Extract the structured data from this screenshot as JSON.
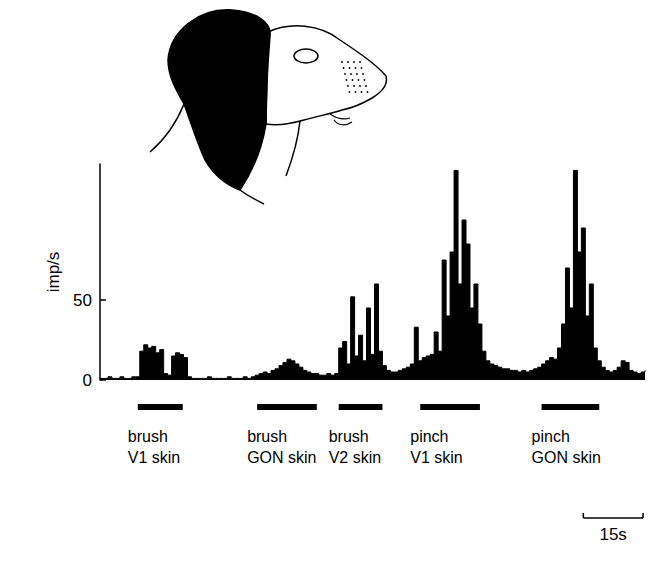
{
  "chart_data": {
    "type": "area",
    "color": "#000000",
    "ylabel": "imp/s",
    "x": [
      0,
      1,
      2,
      3,
      4,
      5,
      6,
      7,
      8,
      9,
      10,
      11,
      12,
      13,
      14,
      15,
      16,
      17,
      18,
      19,
      20,
      21,
      22,
      23,
      24,
      25,
      26,
      27,
      28,
      29,
      30,
      31,
      32,
      33,
      34,
      35,
      36,
      37,
      38,
      39,
      40,
      41,
      42,
      43,
      44,
      45,
      46,
      47,
      48,
      49,
      50,
      51,
      52,
      53,
      54,
      55,
      56,
      57,
      58,
      59,
      60,
      61,
      62,
      63,
      64,
      65,
      66,
      67,
      68,
      69,
      70,
      71,
      72,
      73,
      74,
      75,
      76,
      77,
      78,
      79,
      80,
      81,
      82,
      83,
      84,
      85,
      86,
      87,
      88,
      89,
      90,
      91,
      92,
      93,
      94,
      95,
      96,
      97,
      98,
      99,
      100,
      101,
      102,
      103,
      104,
      105,
      106,
      107,
      108,
      109,
      110,
      111,
      112,
      113,
      114,
      115,
      116,
      117,
      118,
      119,
      120,
      121,
      122,
      123,
      124,
      125,
      126,
      127,
      128,
      129,
      130,
      131,
      132,
      133,
      134,
      135,
      136,
      137
    ],
    "values": [
      1,
      1,
      2,
      1,
      1,
      2,
      1,
      1,
      2,
      2,
      18,
      22,
      20,
      21,
      17,
      19,
      4,
      3,
      15,
      17,
      16,
      14,
      2,
      1,
      1,
      1,
      1,
      2,
      1,
      1,
      1,
      1,
      2,
      1,
      1,
      1,
      2,
      1,
      2,
      3,
      4,
      5,
      4,
      6,
      7,
      9,
      11,
      13,
      12,
      10,
      8,
      6,
      5,
      4,
      4,
      3,
      3,
      4,
      3,
      4,
      20,
      24,
      10,
      52,
      15,
      28,
      12,
      45,
      16,
      60,
      18,
      9,
      6,
      5,
      5,
      6,
      7,
      8,
      10,
      33,
      12,
      14,
      15,
      16,
      30,
      18,
      75,
      40,
      80,
      131,
      60,
      100,
      85,
      45,
      60,
      35,
      18,
      12,
      10,
      9,
      8,
      7,
      7,
      6,
      6,
      5,
      6,
      5,
      6,
      7,
      8,
      10,
      12,
      14,
      13,
      20,
      35,
      70,
      45,
      131,
      80,
      95,
      40,
      60,
      20,
      12,
      8,
      6,
      5,
      6,
      8,
      12,
      11,
      6,
      5,
      4,
      5,
      6
    ],
    "xlim": [
      0,
      138
    ],
    "ylim": [
      0,
      135
    ],
    "yticks": [
      0,
      50
    ],
    "tick_labels": "y",
    "stimuli": [
      {
        "label": "brush\nV1 skin",
        "start": 9.5,
        "end": 20.8
      },
      {
        "label": "brush\nGON skin",
        "start": 39.5,
        "end": 54.5
      },
      {
        "label": "brush\nV2 skin",
        "start": 60,
        "end": 71
      },
      {
        "label": "pinch\nV1 skin",
        "start": 80.5,
        "end": 95.5
      },
      {
        "label": "pinch\nGON skin",
        "start": 111,
        "end": 125.5
      }
    ],
    "scale_bar": {
      "length": 15,
      "label": "15s"
    }
  }
}
